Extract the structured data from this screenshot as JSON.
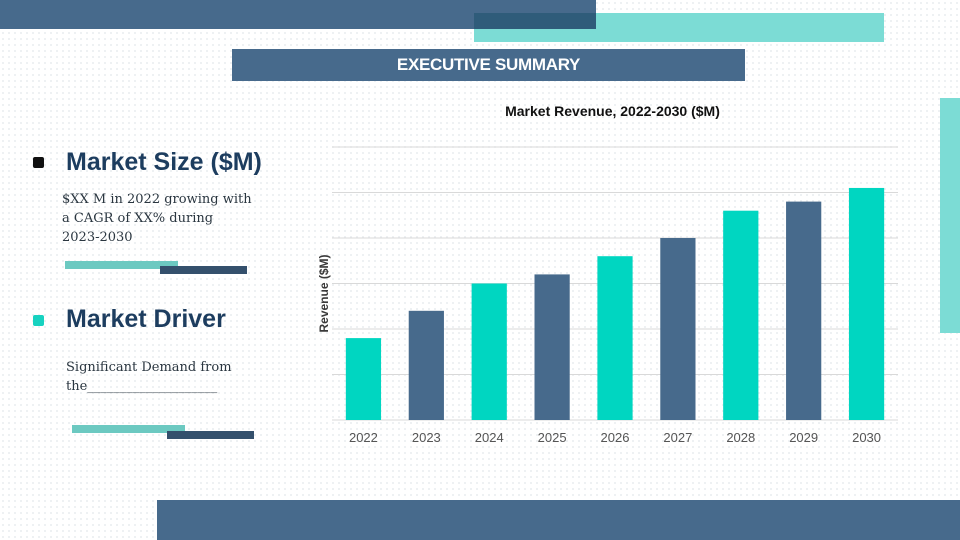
{
  "banner": {
    "title": "EXECUTIVE SUMMARY"
  },
  "sections": [
    {
      "heading": "Market Size ($M)",
      "bullet_color": "#111111",
      "lines": [
        "$XX M in 2022 growing with",
        "a CAGR of XX% during",
        "2023-2030"
      ]
    },
    {
      "heading": "Market Driver",
      "bullet_color": "#17d2c0",
      "lines": [
        "Significant Demand from",
        "the____________________"
      ]
    }
  ],
  "colors": {
    "navy": "#476a8c",
    "teal": "#00d6c1",
    "accent_teal": "#7cdcd5"
  },
  "chart_data": {
    "type": "bar",
    "title": "Market Revenue, 2022-2030 ($M)",
    "xlabel": "",
    "ylabel": "Revenue ($M)",
    "categories": [
      "2022",
      "2023",
      "2024",
      "2025",
      "2026",
      "2027",
      "2028",
      "2029",
      "2030"
    ],
    "values": [
      18,
      24,
      30,
      32,
      36,
      40,
      46,
      48,
      51
    ],
    "bar_colors": [
      "#00d6c1",
      "#476a8c",
      "#00d6c1",
      "#476a8c",
      "#00d6c1",
      "#476a8c",
      "#00d6c1",
      "#476a8c",
      "#00d6c1"
    ],
    "ylim": [
      0,
      60
    ],
    "grid": true,
    "y_tick_labels_shown": false
  }
}
